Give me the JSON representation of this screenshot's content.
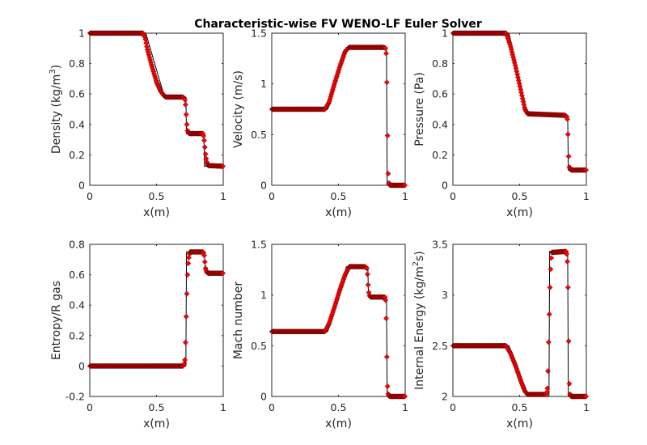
{
  "figure": {
    "title": "Characteristic-wise FV WENO-LF Euler Solver",
    "marker_color": "#ff0000",
    "marker_edge_color": "#000000",
    "line_color": "#000000"
  },
  "chart_data": [
    {
      "type": "line",
      "title": "",
      "xlabel": "x(m)",
      "ylabel": "Density (kg/m³)",
      "ylabel_parts": [
        "Density (kg/m",
        "3",
        ")"
      ],
      "xlim": [
        0,
        1
      ],
      "ylim": [
        0,
        1
      ],
      "xticks": [
        0,
        0.5,
        1
      ],
      "xticklabels": [
        "0",
        "0.5",
        "1"
      ],
      "yticks": [
        0,
        0.2,
        0.4,
        0.6,
        0.8,
        1
      ],
      "yticklabels": [
        "0",
        "0.2",
        "0.4",
        "0.6",
        "0.8",
        "1"
      ],
      "series": [
        {
          "role": "exact",
          "x": [
            0,
            0.42,
            0.56,
            0.72,
            0.725,
            0.855,
            0.86,
            1
          ],
          "y": [
            1,
            1,
            0.58,
            0.58,
            0.34,
            0.34,
            0.125,
            0.125
          ]
        },
        {
          "role": "numerical",
          "x": [
            0,
            0.4,
            0.415,
            0.43,
            0.46,
            0.5,
            0.53,
            0.555,
            0.57,
            0.7,
            0.715,
            0.72,
            0.725,
            0.73,
            0.735,
            0.745,
            0.85,
            0.86,
            0.865,
            0.875,
            0.885,
            1
          ],
          "y": [
            1,
            1,
            0.97,
            0.9,
            0.8,
            0.68,
            0.62,
            0.59,
            0.58,
            0.58,
            0.56,
            0.5,
            0.43,
            0.37,
            0.35,
            0.34,
            0.34,
            0.28,
            0.22,
            0.16,
            0.13,
            0.125
          ]
        }
      ]
    },
    {
      "type": "line",
      "title": "",
      "xlabel": "x(m)",
      "ylabel": "Velocity (m/s)",
      "xlim": [
        0,
        1
      ],
      "ylim": [
        0,
        1.5
      ],
      "xticks": [
        0,
        0.5,
        1
      ],
      "xticklabels": [
        "0",
        "0.5",
        "1"
      ],
      "yticks": [
        0,
        0.5,
        1,
        1.5
      ],
      "yticklabels": [
        "0",
        "0.5",
        "1",
        "1.5"
      ],
      "series": [
        {
          "role": "exact",
          "x": [
            0,
            0.42,
            0.56,
            0.86,
            0.865,
            1
          ],
          "y": [
            0.75,
            0.75,
            1.36,
            1.36,
            0,
            0
          ]
        },
        {
          "role": "numerical",
          "x": [
            0,
            0.4,
            0.43,
            0.47,
            0.51,
            0.55,
            0.58,
            0.84,
            0.855,
            0.86,
            0.865,
            0.87,
            0.875,
            0.885,
            0.9,
            1
          ],
          "y": [
            0.75,
            0.75,
            0.82,
            1.0,
            1.17,
            1.32,
            1.36,
            1.36,
            1.35,
            1.25,
            0.78,
            0.2,
            0.03,
            0.0,
            0,
            0
          ]
        }
      ]
    },
    {
      "type": "line",
      "title": "",
      "xlabel": "x(m)",
      "ylabel": "Pressure (Pa)",
      "xlim": [
        0,
        1
      ],
      "ylim": [
        0,
        1
      ],
      "xticks": [
        0,
        0.5,
        1
      ],
      "xticklabels": [
        "0",
        "0.5",
        "1"
      ],
      "yticks": [
        0,
        0.2,
        0.4,
        0.6,
        0.8,
        1
      ],
      "yticklabels": [
        "0",
        "0.2",
        "0.4",
        "0.6",
        "0.8",
        "1"
      ],
      "series": [
        {
          "role": "exact",
          "x": [
            0,
            0.42,
            0.56,
            0.86,
            0.865,
            1
          ],
          "y": [
            1,
            1,
            0.46,
            0.46,
            0.1,
            0.1
          ]
        },
        {
          "role": "numerical",
          "x": [
            0,
            0.4,
            0.43,
            0.47,
            0.51,
            0.54,
            0.56,
            0.84,
            0.855,
            0.86,
            0.865,
            0.87,
            0.875,
            0.885,
            1
          ],
          "y": [
            1,
            1,
            0.92,
            0.78,
            0.62,
            0.5,
            0.47,
            0.46,
            0.45,
            0.42,
            0.25,
            0.13,
            0.11,
            0.1,
            0.1
          ]
        }
      ]
    },
    {
      "type": "line",
      "title": "",
      "xlabel": "x(m)",
      "ylabel": "Entropy/R gas",
      "xlim": [
        0,
        1
      ],
      "ylim": [
        -0.2,
        0.8
      ],
      "xticks": [
        0,
        0.5,
        1
      ],
      "xticklabels": [
        "0",
        "0.5",
        "1"
      ],
      "yticks": [
        -0.2,
        0,
        0.2,
        0.4,
        0.6,
        0.8
      ],
      "yticklabels": [
        "-0.2",
        "0",
        "0.2",
        "0.4",
        "0.6",
        "0.8"
      ],
      "series": [
        {
          "role": "exact",
          "x": [
            0,
            0.72,
            0.725,
            0.86,
            0.865,
            1
          ],
          "y": [
            0,
            0,
            0.75,
            0.75,
            0.61,
            0.61
          ]
        },
        {
          "role": "numerical",
          "x": [
            0,
            0.7,
            0.71,
            0.715,
            0.72,
            0.725,
            0.73,
            0.735,
            0.74,
            0.75,
            0.85,
            0.86,
            0.865,
            0.875,
            0.885,
            1
          ],
          "y": [
            0,
            0,
            0.02,
            0.06,
            0.25,
            0.4,
            0.55,
            0.65,
            0.7,
            0.75,
            0.75,
            0.72,
            0.65,
            0.62,
            0.61,
            0.61
          ]
        }
      ]
    },
    {
      "type": "line",
      "title": "",
      "xlabel": "x(m)",
      "ylabel": "Mach number",
      "xlim": [
        0,
        1
      ],
      "ylim": [
        0,
        1.5
      ],
      "xticks": [
        0,
        0.5,
        1
      ],
      "xticklabels": [
        "0",
        "0.5",
        "1"
      ],
      "yticks": [
        0,
        0.5,
        1,
        1.5
      ],
      "yticklabels": [
        "0",
        "0.5",
        "1",
        "1.5"
      ],
      "series": [
        {
          "role": "exact",
          "x": [
            0,
            0.42,
            0.56,
            0.72,
            0.725,
            0.86,
            0.865,
            1
          ],
          "y": [
            0.64,
            0.64,
            1.28,
            1.28,
            0.98,
            0.98,
            0,
            0
          ]
        },
        {
          "role": "numerical",
          "x": [
            0,
            0.4,
            0.43,
            0.47,
            0.51,
            0.55,
            0.58,
            0.7,
            0.715,
            0.72,
            0.725,
            0.73,
            0.74,
            0.85,
            0.855,
            0.86,
            0.865,
            0.87,
            0.875,
            0.885,
            1
          ],
          "y": [
            0.64,
            0.64,
            0.72,
            0.88,
            1.05,
            1.2,
            1.28,
            1.28,
            1.26,
            1.15,
            1.05,
            1.0,
            0.98,
            0.98,
            0.92,
            0.62,
            0.16,
            0.04,
            0.01,
            0,
            0
          ]
        }
      ]
    },
    {
      "type": "line",
      "title": "",
      "xlabel": "x(m)",
      "ylabel": "Internal Energy (kg/m²s)",
      "ylabel_parts": [
        "Internal Energy (kg/m",
        "2",
        "s)"
      ],
      "xlim": [
        0,
        1
      ],
      "ylim": [
        2,
        3.5
      ],
      "xticks": [
        0,
        0.5,
        1
      ],
      "xticklabels": [
        "0",
        "0.5",
        "1"
      ],
      "yticks": [
        2,
        2.5,
        3,
        3.5
      ],
      "yticklabels": [
        "2",
        "2.5",
        "3",
        "3.5"
      ],
      "series": [
        {
          "role": "exact",
          "x": [
            0,
            0.42,
            0.56,
            0.72,
            0.725,
            0.86,
            0.865,
            1
          ],
          "y": [
            2.5,
            2.5,
            2.0,
            2.0,
            3.43,
            3.43,
            2.0,
            2.0
          ]
        },
        {
          "role": "numerical",
          "x": [
            0,
            0.4,
            0.43,
            0.47,
            0.51,
            0.54,
            0.56,
            0.7,
            0.71,
            0.715,
            0.72,
            0.725,
            0.73,
            0.74,
            0.85,
            0.855,
            0.86,
            0.865,
            0.87,
            0.875,
            0.885,
            1
          ],
          "y": [
            2.5,
            2.5,
            2.43,
            2.3,
            2.15,
            2.05,
            2.02,
            2.02,
            2.1,
            2.4,
            2.67,
            2.95,
            3.2,
            3.42,
            3.43,
            3.38,
            3.28,
            2.87,
            2.22,
            2.03,
            2.0,
            2.0
          ]
        }
      ]
    }
  ]
}
